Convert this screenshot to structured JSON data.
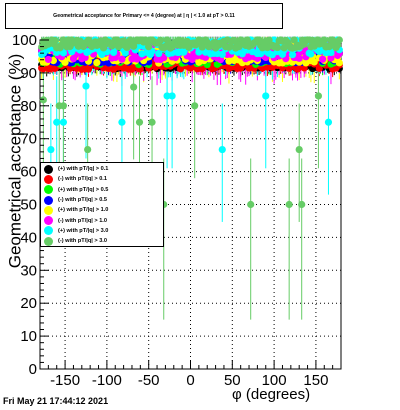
{
  "title": "Geometrical acceptance for Primary <= 4 (degree) at | η | < 1.0 at pT > 0.11",
  "timestamp": "Fri May 21 17:44:12 2021",
  "chart_data": {
    "type": "scatter",
    "xlabel": "φ (degrees)",
    "ylabel": "Geometrical acceptance (%)",
    "xlim": [
      -180,
      180
    ],
    "ylim": [
      0,
      100
    ],
    "x_ticks": [
      -150,
      -100,
      -50,
      0,
      50,
      100,
      150
    ],
    "y_ticks": [
      0,
      10,
      20,
      30,
      40,
      50,
      60,
      70,
      80,
      90,
      100
    ],
    "grid": true,
    "legend_position": "middle-left",
    "series": [
      {
        "name": "(+) with pT/|q| > 0.1",
        "color": "#000000",
        "y": 92.5,
        "spread": 1.2,
        "err": 2
      },
      {
        "name": "(-) with pT/|q| > 0.1",
        "color": "#ff0000",
        "y": 92.5,
        "spread": 1.4,
        "err": 2
      },
      {
        "name": "(+) with pT/|q| > 0.5",
        "color": "#00ff00",
        "y": 95,
        "spread": 2.5,
        "err": 3
      },
      {
        "name": "(-) with pT/|q| > 0.5",
        "color": "#0000ff",
        "y": 95,
        "spread": 2,
        "err": 3
      },
      {
        "name": "(+) with pT/|q| > 1.0",
        "color": "#ffff00",
        "y": 96,
        "spread": 3,
        "err": 5
      },
      {
        "name": "(-) with pT/|q| > 1.0",
        "color": "#ff00ff",
        "y": 96.5,
        "spread": 2.5,
        "err": 6
      },
      {
        "name": "(+) with pT/|q| > 3.0",
        "color": "#00ffff",
        "y": 98,
        "spread": 2.5,
        "err": 6
      },
      {
        "name": "(-) with pT/|q| > 3.0",
        "color": "#66cc66",
        "y": 99,
        "spread": 1.5,
        "err": 5
      }
    ],
    "outliers": [
      {
        "series": 6,
        "x": -167,
        "y": 66.7
      },
      {
        "series": 6,
        "x": -160,
        "y": 75
      },
      {
        "series": 6,
        "x": -152,
        "y": 75
      },
      {
        "series": 6,
        "x": -125,
        "y": 86
      },
      {
        "series": 6,
        "x": -82,
        "y": 75
      },
      {
        "series": 6,
        "x": -28,
        "y": 83
      },
      {
        "series": 6,
        "x": -22,
        "y": 83
      },
      {
        "series": 6,
        "x": 38,
        "y": 66.7
      },
      {
        "series": 6,
        "x": 90,
        "y": 83
      },
      {
        "series": 6,
        "x": 165,
        "y": 75
      },
      {
        "series": 7,
        "x": -176,
        "y": 81.8
      },
      {
        "series": 7,
        "x": -157,
        "y": 80
      },
      {
        "series": 7,
        "x": -152,
        "y": 80
      },
      {
        "series": 7,
        "x": -123,
        "y": 66.7
      },
      {
        "series": 7,
        "x": -68,
        "y": 85.7
      },
      {
        "series": 7,
        "x": -61,
        "y": 75
      },
      {
        "series": 7,
        "x": -46,
        "y": 75
      },
      {
        "series": 7,
        "x": -32,
        "y": 50
      },
      {
        "series": 7,
        "x": 5,
        "y": 80
      },
      {
        "series": 7,
        "x": 72,
        "y": 50
      },
      {
        "series": 7,
        "x": 118,
        "y": 50
      },
      {
        "series": 7,
        "x": 130,
        "y": 66.7
      },
      {
        "series": 7,
        "x": 133,
        "y": 50
      },
      {
        "series": 7,
        "x": 153,
        "y": 83
      }
    ]
  }
}
